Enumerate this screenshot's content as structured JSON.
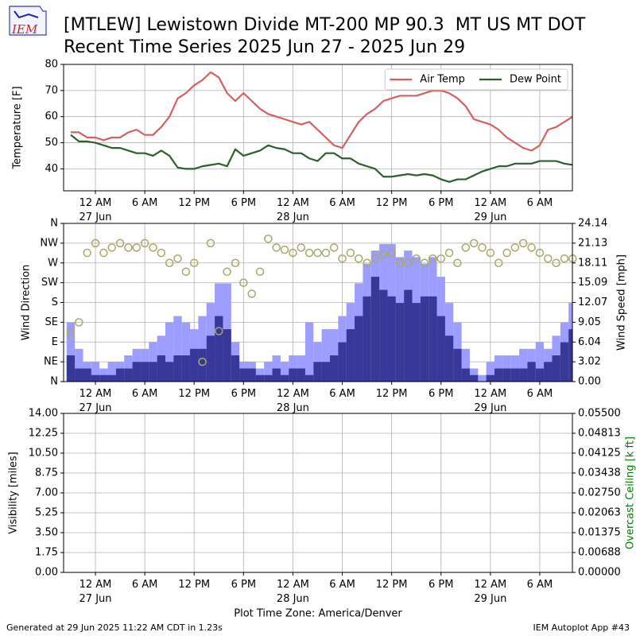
{
  "header": {
    "logo": "IEM",
    "title": [
      "[MTLEW] Lewistown Divide MT-200 MP 90.3  MT US MT DOT",
      "Recent Time Series 2025 Jun 27 - 2025 Jun 29"
    ]
  },
  "footer": {
    "generated": "Generated at 29 Jun 2025 11:22 AM CDT in 1.23s",
    "app": "IEM Autoplot App #43"
  },
  "chart_data": [
    {
      "type": "line",
      "ylabel": "Temperature [F]",
      "grid": true,
      "legend": "upper right",
      "xlim": [
        "2025-06-26T20:08",
        "2025-06-29T09:58"
      ],
      "xticks": [
        {
          "value": "2025-06-27T00:00",
          "label": "12 AM\n27 Jun"
        },
        {
          "value": "2025-06-27T06:00",
          "label": "6 AM"
        },
        {
          "value": "2025-06-27T12:00",
          "label": "12 PM"
        },
        {
          "value": "2025-06-27T18:00",
          "label": "6 PM"
        },
        {
          "value": "2025-06-28T00:00",
          "label": "12 AM\n28 Jun"
        },
        {
          "value": "2025-06-28T06:00",
          "label": "6 AM"
        },
        {
          "value": "2025-06-28T12:00",
          "label": "12 PM"
        },
        {
          "value": "2025-06-28T18:00",
          "label": "6 PM"
        },
        {
          "value": "2025-06-29T00:00",
          "label": "12 AM\n29 Jun"
        },
        {
          "value": "2025-06-29T06:00",
          "label": "6 AM"
        }
      ],
      "ylim": [
        31.6,
        80
      ],
      "yticks": [
        40,
        50,
        60,
        70,
        80
      ],
      "x": [
        "2025-06-26T21:00",
        "2025-06-26T22:00",
        "2025-06-26T23:00",
        "2025-06-27T00:00",
        "2025-06-27T01:00",
        "2025-06-27T02:00",
        "2025-06-27T03:00",
        "2025-06-27T04:00",
        "2025-06-27T05:00",
        "2025-06-27T06:00",
        "2025-06-27T07:00",
        "2025-06-27T08:00",
        "2025-06-27T09:00",
        "2025-06-27T10:00",
        "2025-06-27T11:00",
        "2025-06-27T12:00",
        "2025-06-27T13:00",
        "2025-06-27T14:00",
        "2025-06-27T15:00",
        "2025-06-27T16:00",
        "2025-06-27T17:00",
        "2025-06-27T18:00",
        "2025-06-27T19:00",
        "2025-06-27T20:00",
        "2025-06-27T21:00",
        "2025-06-27T22:00",
        "2025-06-27T23:00",
        "2025-06-28T00:00",
        "2025-06-28T01:00",
        "2025-06-28T02:00",
        "2025-06-28T03:00",
        "2025-06-28T04:00",
        "2025-06-28T05:00",
        "2025-06-28T06:00",
        "2025-06-28T07:00",
        "2025-06-28T08:00",
        "2025-06-28T09:00",
        "2025-06-28T10:00",
        "2025-06-28T11:00",
        "2025-06-28T12:00",
        "2025-06-28T13:00",
        "2025-06-28T14:00",
        "2025-06-28T15:00",
        "2025-06-28T16:00",
        "2025-06-28T17:00",
        "2025-06-28T18:00",
        "2025-06-28T19:00",
        "2025-06-28T20:00",
        "2025-06-28T21:00",
        "2025-06-28T22:00",
        "2025-06-28T23:00",
        "2025-06-29T00:00",
        "2025-06-29T01:00",
        "2025-06-29T02:00",
        "2025-06-29T03:00",
        "2025-06-29T04:00",
        "2025-06-29T05:00",
        "2025-06-29T06:00",
        "2025-06-29T07:00",
        "2025-06-29T08:00",
        "2025-06-29T09:00",
        "2025-06-29T10:00"
      ],
      "series": [
        {
          "name": "Air Temp",
          "color": "#d65f5f",
          "values": [
            54,
            54,
            52,
            52,
            51,
            52,
            52,
            54,
            55,
            53,
            53,
            56,
            60,
            67,
            69,
            72,
            74,
            77,
            75,
            69,
            66,
            69,
            66,
            63,
            61,
            60,
            59,
            58,
            57,
            58,
            55,
            52,
            49,
            48,
            53,
            58,
            61,
            63,
            66,
            67,
            68,
            68,
            68,
            69,
            70,
            70,
            69,
            67,
            64,
            59,
            58,
            57,
            55,
            52,
            50,
            48,
            47,
            49,
            55,
            56,
            58,
            60
          ]
        },
        {
          "name": "Dew Point",
          "color": "#2e5e2e",
          "values": [
            53,
            50.5,
            50.5,
            50,
            49,
            48,
            48,
            47,
            46,
            46,
            45,
            47,
            45,
            40.5,
            40,
            40,
            41,
            41.5,
            42,
            41,
            47.5,
            45,
            46,
            47,
            49,
            48,
            47.5,
            46,
            46,
            44,
            43,
            46,
            46,
            44,
            44,
            42,
            41,
            40,
            37,
            37,
            37.5,
            38,
            37.5,
            38,
            37.5,
            36,
            35,
            36,
            36,
            37.5,
            39,
            40,
            41,
            41,
            42,
            42,
            42,
            43,
            43,
            43,
            42,
            41.5
          ]
        }
      ]
    },
    {
      "type": "bar",
      "ylabel": "Wind Direction",
      "y2label": "Wind Speed [mph]",
      "grid": true,
      "xlim": [
        "2025-06-26T20:08",
        "2025-06-29T09:58"
      ],
      "xticks": [
        {
          "value": "2025-06-27T00:00",
          "label": "12 AM\n27 Jun"
        },
        {
          "value": "2025-06-27T06:00",
          "label": "6 AM"
        },
        {
          "value": "2025-06-27T12:00",
          "label": "12 PM"
        },
        {
          "value": "2025-06-27T18:00",
          "label": "6 PM"
        },
        {
          "value": "2025-06-28T00:00",
          "label": "12 AM\n28 Jun"
        },
        {
          "value": "2025-06-28T06:00",
          "label": "6 AM"
        },
        {
          "value": "2025-06-28T12:00",
          "label": "12 PM"
        },
        {
          "value": "2025-06-28T18:00",
          "label": "6 PM"
        },
        {
          "value": "2025-06-29T00:00",
          "label": "12 AM\n29 Jun"
        },
        {
          "value": "2025-06-29T06:00",
          "label": "6 AM"
        }
      ],
      "ylim": [
        0,
        360
      ],
      "yticks": [
        {
          "value": 0,
          "label": "N"
        },
        {
          "value": 45,
          "label": "NE"
        },
        {
          "value": 90,
          "label": "E"
        },
        {
          "value": 135,
          "label": "SE"
        },
        {
          "value": 180,
          "label": "S"
        },
        {
          "value": 225,
          "label": "SW"
        },
        {
          "value": 270,
          "label": "W"
        },
        {
          "value": 315,
          "label": "NW"
        },
        {
          "value": 360,
          "label": "N"
        }
      ],
      "y2lim": [
        0,
        24.144
      ],
      "y2ticks": [
        {
          "value": 0,
          "label": "0.00"
        },
        {
          "value": 3.018,
          "label": "3.02"
        },
        {
          "value": 6.036,
          "label": "6.04"
        },
        {
          "value": 9.054,
          "label": "9.05"
        },
        {
          "value": 12.072,
          "label": "12.07"
        },
        {
          "value": 15.09,
          "label": "15.09"
        },
        {
          "value": 18.108,
          "label": "18.11"
        },
        {
          "value": 21.126,
          "label": "21.13"
        },
        {
          "value": 24.144,
          "label": "24.14"
        }
      ],
      "x": [
        "2025-06-26T21:00",
        "2025-06-26T22:00",
        "2025-06-26T23:00",
        "2025-06-27T00:00",
        "2025-06-27T01:00",
        "2025-06-27T02:00",
        "2025-06-27T03:00",
        "2025-06-27T04:00",
        "2025-06-27T05:00",
        "2025-06-27T06:00",
        "2025-06-27T07:00",
        "2025-06-27T08:00",
        "2025-06-27T09:00",
        "2025-06-27T10:00",
        "2025-06-27T11:00",
        "2025-06-27T12:00",
        "2025-06-27T13:00",
        "2025-06-27T14:00",
        "2025-06-27T15:00",
        "2025-06-27T16:00",
        "2025-06-27T17:00",
        "2025-06-27T18:00",
        "2025-06-27T19:00",
        "2025-06-27T20:00",
        "2025-06-27T21:00",
        "2025-06-27T22:00",
        "2025-06-27T23:00",
        "2025-06-28T00:00",
        "2025-06-28T01:00",
        "2025-06-28T02:00",
        "2025-06-28T03:00",
        "2025-06-28T04:00",
        "2025-06-28T05:00",
        "2025-06-28T06:00",
        "2025-06-28T07:00",
        "2025-06-28T08:00",
        "2025-06-28T09:00",
        "2025-06-28T10:00",
        "2025-06-28T11:00",
        "2025-06-28T12:00",
        "2025-06-28T13:00",
        "2025-06-28T14:00",
        "2025-06-28T15:00",
        "2025-06-28T16:00",
        "2025-06-28T17:00",
        "2025-06-28T18:00",
        "2025-06-28T19:00",
        "2025-06-28T20:00",
        "2025-06-28T21:00",
        "2025-06-28T22:00",
        "2025-06-28T23:00",
        "2025-06-29T00:00",
        "2025-06-29T01:00",
        "2025-06-29T02:00",
        "2025-06-29T03:00",
        "2025-06-29T04:00",
        "2025-06-29T05:00",
        "2025-06-29T06:00",
        "2025-06-29T07:00",
        "2025-06-29T08:00",
        "2025-06-29T09:00",
        "2025-06-29T10:00"
      ],
      "series": [
        {
          "type": "bar",
          "axis": "y2",
          "color": "#9d9dff",
          "values": [
            9,
            5,
            3,
            3,
            2,
            3,
            3,
            4,
            5,
            5,
            6,
            7,
            9,
            10,
            9,
            8,
            10,
            12,
            15,
            15,
            6,
            3,
            3,
            2,
            3,
            4,
            3,
            4,
            4,
            9,
            6,
            8,
            8,
            10,
            12,
            15,
            18,
            20,
            21,
            21,
            19,
            20,
            19,
            18,
            19,
            16,
            12,
            9,
            5,
            2,
            1,
            3,
            4,
            4,
            4,
            5,
            5,
            6,
            5,
            7,
            9,
            12
          ]
        },
        {
          "type": "bar",
          "axis": "y2",
          "color": "#383899",
          "values": [
            4,
            2,
            2,
            1,
            1,
            1,
            2,
            2,
            3,
            3,
            3,
            4,
            3,
            4,
            4,
            5,
            5,
            7,
            10,
            8,
            4,
            2,
            2,
            1,
            1,
            2,
            1,
            2,
            2,
            1,
            3,
            3,
            4,
            6,
            8,
            10,
            13,
            16,
            14,
            13,
            12,
            14,
            12,
            13,
            13,
            10,
            7,
            5,
            2,
            1,
            0,
            1,
            2,
            2,
            2,
            2,
            3,
            2,
            3,
            4,
            6,
            8
          ]
        },
        {
          "type": "scatter",
          "color": "#a8a866",
          "values": [
            112,
            135,
            293,
            315,
            293,
            305,
            315,
            305,
            305,
            315,
            305,
            293,
            270,
            280,
            250,
            270,
            45,
            315,
            115,
            250,
            270,
            225,
            200,
            250,
            325,
            305,
            300,
            293,
            305,
            293,
            293,
            293,
            305,
            280,
            293,
            280,
            270,
            280,
            290,
            293,
            270,
            270,
            280,
            270,
            280,
            280,
            293,
            270,
            305,
            315,
            305,
            293,
            270,
            293,
            305,
            315,
            305,
            293,
            280,
            270,
            280,
            280
          ]
        }
      ]
    },
    {
      "type": "line",
      "ylabel": "Visibility [miles]",
      "y2label": "Overcast Ceiling [k ft]",
      "y2label_color": "#008000",
      "xlabel": "Plot Time Zone: America/Denver",
      "grid": true,
      "xlim": [
        "2025-06-26T20:08",
        "2025-06-29T09:58"
      ],
      "xticks": [
        {
          "value": "2025-06-27T00:00",
          "label": "12 AM\n27 Jun"
        },
        {
          "value": "2025-06-27T06:00",
          "label": "6 AM"
        },
        {
          "value": "2025-06-27T12:00",
          "label": "12 PM"
        },
        {
          "value": "2025-06-27T18:00",
          "label": "6 PM"
        },
        {
          "value": "2025-06-28T00:00",
          "label": "12 AM\n28 Jun"
        },
        {
          "value": "2025-06-28T06:00",
          "label": "6 AM"
        },
        {
          "value": "2025-06-28T12:00",
          "label": "12 PM"
        },
        {
          "value": "2025-06-28T18:00",
          "label": "6 PM"
        },
        {
          "value": "2025-06-29T00:00",
          "label": "12 AM\n29 Jun"
        },
        {
          "value": "2025-06-29T06:00",
          "label": "6 AM"
        }
      ],
      "ylim": [
        0,
        14
      ],
      "yticks": [
        {
          "value": 0,
          "label": "0.00"
        },
        1.75,
        {
          "value": 3.5,
          "label": "3.50"
        },
        5.25,
        {
          "value": 7,
          "label": "7.00"
        },
        8.75,
        {
          "value": 10.5,
          "label": "10.50"
        },
        12.25,
        {
          "value": 14,
          "label": "14.00"
        }
      ],
      "y2lim": [
        0,
        0.055
      ],
      "y2ticks": [
        {
          "value": 0,
          "label": "0.00000"
        },
        {
          "value": 0.006875,
          "label": "0.00688"
        },
        {
          "value": 0.01375,
          "label": "0.01375"
        },
        {
          "value": 0.020625,
          "label": "0.02063"
        },
        {
          "value": 0.0275,
          "label": "0.02750"
        },
        {
          "value": 0.034375,
          "label": "0.03438"
        },
        {
          "value": 0.04125,
          "label": "0.04125"
        },
        {
          "value": 0.048125,
          "label": "0.04813"
        },
        {
          "value": 0.055,
          "label": "0.05500"
        }
      ]
    }
  ]
}
